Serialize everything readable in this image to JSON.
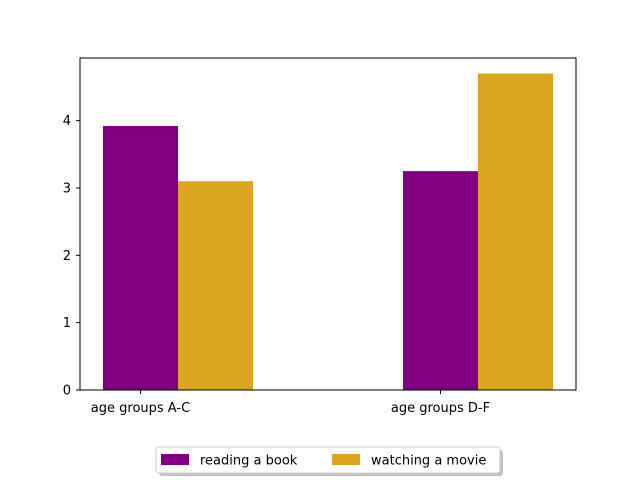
{
  "chart_data": {
    "type": "bar",
    "title": "",
    "xlabel": "",
    "ylabel": "",
    "categories": [
      "age groups A-C",
      "age groups D-F"
    ],
    "series": [
      {
        "name": "reading a book",
        "values": [
          3.92,
          3.25
        ],
        "color": "#800080"
      },
      {
        "name": "watching a movie",
        "values": [
          3.1,
          4.7
        ],
        "color": "#DAA520"
      }
    ],
    "ylim": [
      0,
      4.93
    ],
    "yticks": [
      0,
      1,
      2,
      3,
      4
    ],
    "grid": false,
    "legend": {
      "placement": "bottom-center",
      "columns": 2
    }
  }
}
